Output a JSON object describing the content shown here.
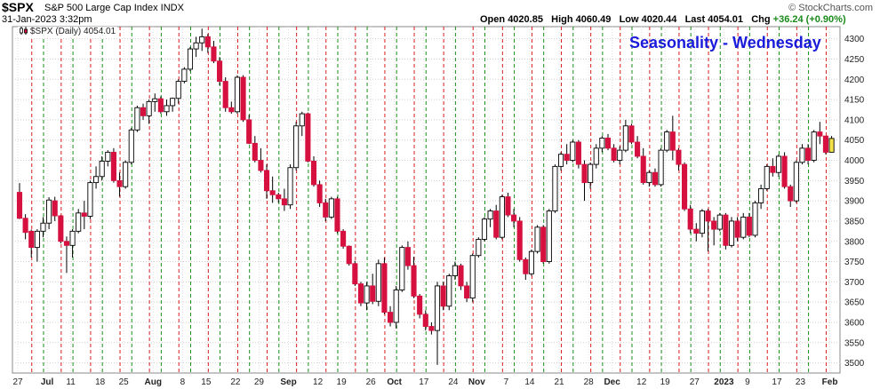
{
  "header": {
    "symbol": "$SPX",
    "name": "S&P 500 Large Cap Index INDX",
    "datetime": "31-Jan-2023 3:32pm",
    "watermark": "© StockCharts.com",
    "open_label": "Open",
    "open": "4020.85",
    "high_label": "High",
    "high": "4060.49",
    "low_label": "Low",
    "low": "4020.44",
    "last_label": "Last",
    "last": "4054.01",
    "chg_label": "Chg",
    "chg": "+36.24 (+0.90%)"
  },
  "legend": {
    "text": "$SPX (Daily) 4054.01"
  },
  "overlay_title": "Seasonality - Wednesday",
  "colors": {
    "up_body": "#ffffff",
    "down_body": "#d6103f",
    "wick": "#000000",
    "red_line": "#d91e1e",
    "green_line": "#1a8f1a",
    "highlight": "#f5e34a",
    "title_blue": "#1a1adb"
  },
  "chart_data": {
    "type": "candlestick",
    "title": "Seasonality - Wednesday",
    "series_name": "$SPX (Daily)",
    "ylim": [
      3475,
      4330
    ],
    "y_ticks": [
      3500,
      3550,
      3600,
      3650,
      3700,
      3750,
      3800,
      3850,
      3900,
      3950,
      4000,
      4050,
      4100,
      4150,
      4200,
      4250,
      4300
    ],
    "x_tick_labels": [
      "27",
      "Jul",
      "11",
      "18",
      "25",
      "Aug",
      "8",
      "15",
      "22",
      "29",
      "Sep",
      "12",
      "19",
      "26",
      "Oct",
      "17",
      "24",
      "Nov",
      "7",
      "14",
      "21",
      "28",
      "Dec",
      "12",
      "19",
      "27",
      "2023",
      "9",
      "17",
      "23",
      "Feb"
    ],
    "bold_tick_labels": [
      "Jul",
      "Aug",
      "Sep",
      "Oct",
      "Nov",
      "Dec",
      "2023",
      "Feb"
    ],
    "grid": true,
    "seasonality_markers": "red dashed vertical line at each Wednesday, green dashed line at each Friday",
    "candles": [
      [
        3921,
        3944,
        3855,
        3857
      ],
      [
        3857,
        3867,
        3805,
        3822
      ],
      [
        3825,
        3829,
        3760,
        3785
      ],
      [
        3785,
        3830,
        3750,
        3825
      ],
      [
        3825,
        3860,
        3810,
        3845
      ],
      [
        3845,
        3909,
        3830,
        3902
      ],
      [
        3900,
        3910,
        3850,
        3863
      ],
      [
        3863,
        3865,
        3795,
        3800
      ],
      [
        3800,
        3812,
        3722,
        3790
      ],
      [
        3790,
        3830,
        3760,
        3825
      ],
      [
        3825,
        3880,
        3820,
        3870
      ],
      [
        3870,
        3900,
        3830,
        3862
      ],
      [
        3862,
        3950,
        3855,
        3945
      ],
      [
        3945,
        3985,
        3930,
        3960
      ],
      [
        3960,
        4010,
        3950,
        3998
      ],
      [
        3998,
        4025,
        3985,
        4020
      ],
      [
        4020,
        4030,
        3945,
        3950
      ],
      [
        3950,
        3970,
        3910,
        3935
      ],
      [
        3935,
        4000,
        3930,
        3995
      ],
      [
        3995,
        4080,
        3990,
        4075
      ],
      [
        4075,
        4135,
        4070,
        4130
      ],
      [
        4130,
        4140,
        4100,
        4110
      ],
      [
        4110,
        4150,
        4090,
        4145
      ],
      [
        4145,
        4165,
        4120,
        4152
      ],
      [
        4152,
        4158,
        4115,
        4120
      ],
      [
        4120,
        4150,
        4110,
        4135
      ],
      [
        4135,
        4155,
        4120,
        4153
      ],
      [
        4153,
        4200,
        4140,
        4195
      ],
      [
        4195,
        4230,
        4190,
        4225
      ],
      [
        4225,
        4280,
        4220,
        4275
      ],
      [
        4275,
        4305,
        4255,
        4290
      ],
      [
        4290,
        4325,
        4270,
        4305
      ],
      [
        4305,
        4312,
        4265,
        4280
      ],
      [
        4280,
        4295,
        4240,
        4245
      ],
      [
        4245,
        4255,
        4185,
        4195
      ],
      [
        4195,
        4205,
        4120,
        4130
      ],
      [
        4130,
        4145,
        4115,
        4120
      ],
      [
        4120,
        4210,
        4115,
        4205
      ],
      [
        4205,
        4210,
        4095,
        4100
      ],
      [
        4100,
        4112,
        4040,
        4042
      ],
      [
        4042,
        4060,
        3995,
        4000
      ],
      [
        4000,
        4030,
        3970,
        3975
      ],
      [
        3975,
        3990,
        3905,
        3925
      ],
      [
        3925,
        3960,
        3895,
        3915
      ],
      [
        3915,
        3920,
        3895,
        3905
      ],
      [
        3905,
        3930,
        3875,
        3890
      ],
      [
        3890,
        3990,
        3880,
        3982
      ],
      [
        3982,
        4095,
        3975,
        4085
      ],
      [
        4085,
        4120,
        4060,
        4115
      ],
      [
        4115,
        4118,
        3995,
        3998
      ],
      [
        3998,
        4010,
        3935,
        3940
      ],
      [
        3940,
        3950,
        3885,
        3895
      ],
      [
        3895,
        3905,
        3850,
        3860
      ],
      [
        3860,
        3910,
        3855,
        3905
      ],
      [
        3905,
        3910,
        3820,
        3825
      ],
      [
        3825,
        3830,
        3782,
        3788
      ],
      [
        3788,
        3790,
        3740,
        3745
      ],
      [
        3745,
        3752,
        3690,
        3695
      ],
      [
        3695,
        3700,
        3640,
        3648
      ],
      [
        3648,
        3700,
        3630,
        3690
      ],
      [
        3690,
        3720,
        3645,
        3652
      ],
      [
        3652,
        3755,
        3640,
        3745
      ],
      [
        3745,
        3760,
        3620,
        3625
      ],
      [
        3625,
        3640,
        3590,
        3600
      ],
      [
        3600,
        3690,
        3585,
        3680
      ],
      [
        3680,
        3790,
        3675,
        3785
      ],
      [
        3785,
        3800,
        3730,
        3740
      ],
      [
        3740,
        3762,
        3660,
        3665
      ],
      [
        3665,
        3670,
        3610,
        3620
      ],
      [
        3620,
        3630,
        3580,
        3590
      ],
      [
        3590,
        3600,
        3570,
        3580
      ],
      [
        3580,
        3700,
        3495,
        3690
      ],
      [
        3690,
        3700,
        3630,
        3640
      ],
      [
        3640,
        3720,
        3630,
        3715
      ],
      [
        3715,
        3750,
        3705,
        3740
      ],
      [
        3740,
        3745,
        3680,
        3690
      ],
      [
        3690,
        3700,
        3650,
        3660
      ],
      [
        3660,
        3770,
        3650,
        3765
      ],
      [
        3765,
        3810,
        3760,
        3805
      ],
      [
        3805,
        3860,
        3800,
        3855
      ],
      [
        3855,
        3880,
        3835,
        3875
      ],
      [
        3875,
        3890,
        3805,
        3810
      ],
      [
        3810,
        3915,
        3805,
        3910
      ],
      [
        3910,
        3920,
        3860,
        3865
      ],
      [
        3865,
        3880,
        3835,
        3850
      ],
      [
        3850,
        3860,
        3750,
        3755
      ],
      [
        3755,
        3760,
        3705,
        3720
      ],
      [
        3720,
        3780,
        3715,
        3775
      ],
      [
        3775,
        3840,
        3770,
        3835
      ],
      [
        3835,
        3840,
        3745,
        3750
      ],
      [
        3750,
        3880,
        3745,
        3875
      ],
      [
        3875,
        3990,
        3870,
        3985
      ],
      [
        3985,
        4020,
        3975,
        4015
      ],
      [
        4015,
        4040,
        3990,
        4000
      ],
      [
        4000,
        4050,
        3995,
        4045
      ],
      [
        4045,
        4050,
        3980,
        3990
      ],
      [
        3990,
        4000,
        3900,
        3945
      ],
      [
        3945,
        3995,
        3930,
        3990
      ],
      [
        3990,
        4040,
        3980,
        4030
      ],
      [
        4030,
        4060,
        4020,
        4055
      ],
      [
        4055,
        4065,
        4025,
        4030
      ],
      [
        4030,
        4040,
        3995,
        4000
      ],
      [
        4000,
        4035,
        3990,
        4025
      ],
      [
        4025,
        4100,
        4020,
        4085
      ],
      [
        4085,
        4090,
        4040,
        4045
      ],
      [
        4045,
        4060,
        4005,
        4010
      ],
      [
        4010,
        4030,
        3940,
        3945
      ],
      [
        3945,
        3975,
        3935,
        3970
      ],
      [
        3970,
        3980,
        3935,
        3940
      ],
      [
        3940,
        4030,
        3935,
        4025
      ],
      [
        4025,
        4075,
        4020,
        4070
      ],
      [
        4070,
        4110,
        4000,
        4025
      ],
      [
        4025,
        4030,
        3975,
        3990
      ],
      [
        3990,
        3995,
        3875,
        3880
      ],
      [
        3880,
        3890,
        3820,
        3830
      ],
      [
        3830,
        3845,
        3800,
        3820
      ],
      [
        3820,
        3880,
        3810,
        3875
      ],
      [
        3875,
        3880,
        3775,
        3850
      ],
      [
        3850,
        3860,
        3790,
        3830
      ],
      [
        3830,
        3870,
        3825,
        3865
      ],
      [
        3865,
        3870,
        3780,
        3790
      ],
      [
        3790,
        3860,
        3785,
        3850
      ],
      [
        3850,
        3860,
        3800,
        3810
      ],
      [
        3810,
        3870,
        3805,
        3860
      ],
      [
        3860,
        3870,
        3810,
        3815
      ],
      [
        3815,
        3900,
        3810,
        3895
      ],
      [
        3895,
        3940,
        3880,
        3930
      ],
      [
        3930,
        3990,
        3925,
        3985
      ],
      [
        3985,
        4005,
        3960,
        3970
      ],
      [
        3970,
        4015,
        3960,
        4010
      ],
      [
        4010,
        4020,
        3930,
        3935
      ],
      [
        3935,
        3940,
        3885,
        3900
      ],
      [
        3900,
        4000,
        3895,
        3995
      ],
      [
        3995,
        4040,
        3990,
        4030
      ],
      [
        4030,
        4040,
        3990,
        4000
      ],
      [
        4000,
        4075,
        3995,
        4070
      ],
      [
        4070,
        4095,
        4040,
        4060
      ],
      [
        4060,
        4060,
        4015,
        4020
      ],
      [
        4020,
        4060,
        4020,
        4054
      ]
    ]
  }
}
